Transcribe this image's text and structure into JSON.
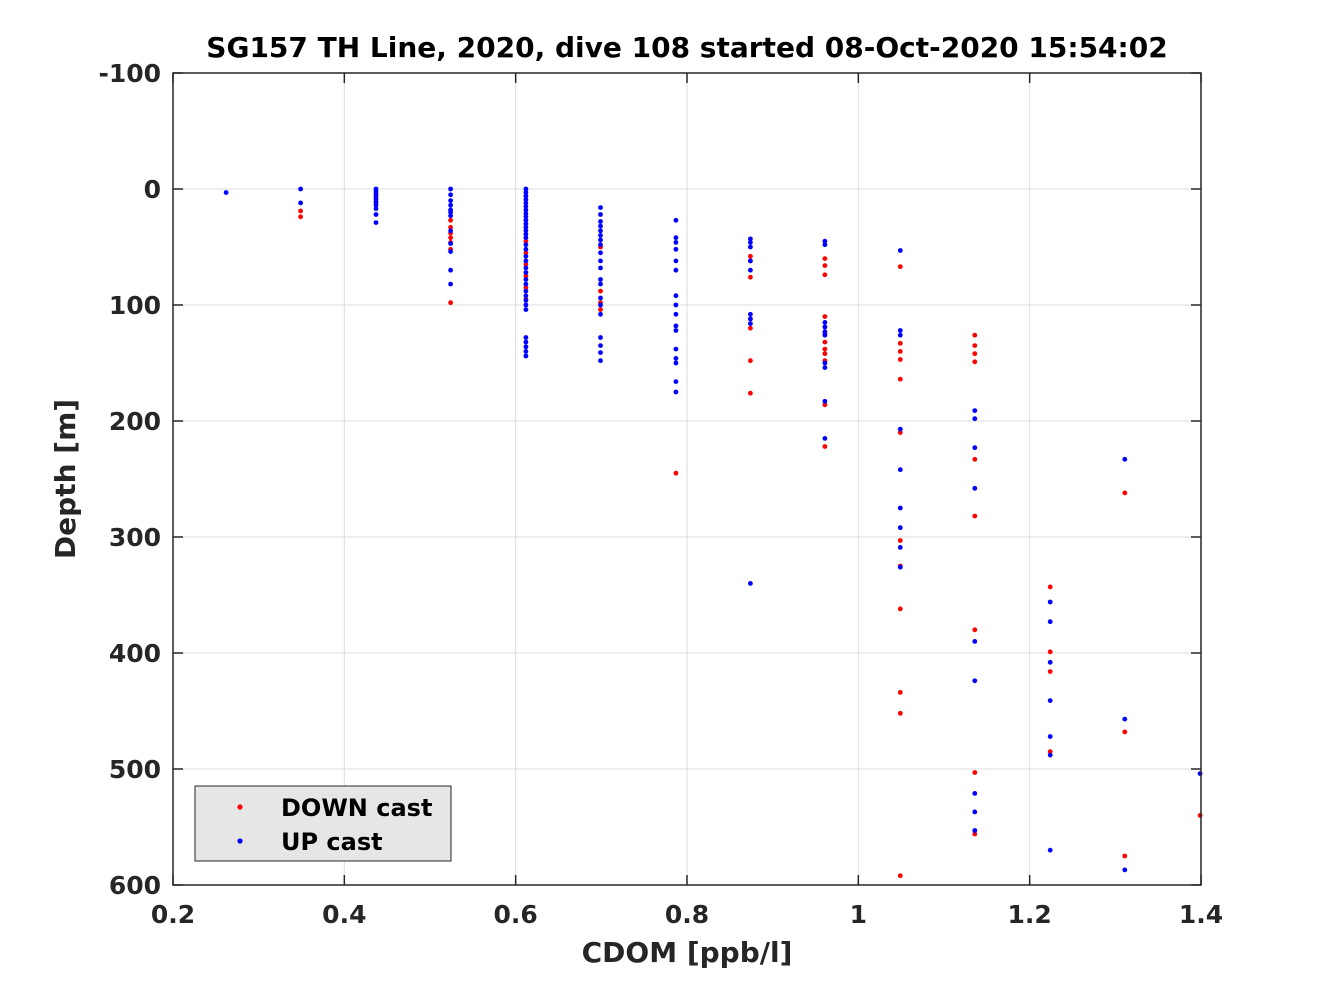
{
  "chart_data": {
    "type": "scatter",
    "title": "SG157 TH Line, 2020, dive 108 started 08-Oct-2020 15:54:02",
    "xlabel": "CDOM [ppb/l]",
    "ylabel": "Depth [m]",
    "xlim": [
      0.2,
      1.4
    ],
    "ylim": [
      -100,
      600
    ],
    "y_reversed": true,
    "grid": true,
    "xticks": [
      "0.2",
      "0.4",
      "0.6",
      "0.8",
      "1",
      "1.2",
      "1.4"
    ],
    "yticks": [
      "-100",
      "0",
      "100",
      "200",
      "300",
      "400",
      "500",
      "600"
    ],
    "legend_position": "bottom-left",
    "series": [
      {
        "name": "DOWN cast",
        "color": "#ff0000",
        "points": [
          [
            0.349,
            19
          ],
          [
            0.349,
            24
          ],
          [
            0.437,
            8
          ],
          [
            0.437,
            12
          ],
          [
            0.524,
            27
          ],
          [
            0.524,
            33
          ],
          [
            0.524,
            38
          ],
          [
            0.524,
            42
          ],
          [
            0.524,
            46
          ],
          [
            0.524,
            52
          ],
          [
            0.524,
            98
          ],
          [
            0.612,
            45
          ],
          [
            0.612,
            55
          ],
          [
            0.612,
            65
          ],
          [
            0.612,
            75
          ],
          [
            0.612,
            85
          ],
          [
            0.612,
            95
          ],
          [
            0.699,
            50
          ],
          [
            0.699,
            88
          ],
          [
            0.699,
            98
          ],
          [
            0.699,
            104
          ],
          [
            0.787,
            245
          ],
          [
            0.874,
            58
          ],
          [
            0.874,
            62
          ],
          [
            0.874,
            76
          ],
          [
            0.874,
            112
          ],
          [
            0.874,
            120
          ],
          [
            0.874,
            148
          ],
          [
            0.874,
            176
          ],
          [
            0.961,
            60
          ],
          [
            0.961,
            66
          ],
          [
            0.961,
            74
          ],
          [
            0.961,
            110
          ],
          [
            0.961,
            125
          ],
          [
            0.961,
            132
          ],
          [
            0.961,
            138
          ],
          [
            0.961,
            142
          ],
          [
            0.961,
            148
          ],
          [
            0.961,
            186
          ],
          [
            0.961,
            222
          ],
          [
            1.049,
            67
          ],
          [
            1.049,
            133
          ],
          [
            1.049,
            140
          ],
          [
            1.049,
            147
          ],
          [
            1.049,
            164
          ],
          [
            1.049,
            210
          ],
          [
            1.049,
            303
          ],
          [
            1.049,
            325
          ],
          [
            1.049,
            362
          ],
          [
            1.049,
            434
          ],
          [
            1.049,
            452
          ],
          [
            1.049,
            592
          ],
          [
            1.136,
            126
          ],
          [
            1.136,
            135
          ],
          [
            1.136,
            142
          ],
          [
            1.136,
            149
          ],
          [
            1.136,
            233
          ],
          [
            1.136,
            282
          ],
          [
            1.136,
            380
          ],
          [
            1.136,
            503
          ],
          [
            1.136,
            556
          ],
          [
            1.224,
            343
          ],
          [
            1.224,
            399
          ],
          [
            1.224,
            416
          ],
          [
            1.224,
            485
          ],
          [
            1.311,
            262
          ],
          [
            1.311,
            468
          ],
          [
            1.311,
            575
          ],
          [
            1.399,
            540
          ]
        ]
      },
      {
        "name": "UP cast",
        "color": "#0000ff",
        "points": [
          [
            0.262,
            3
          ],
          [
            0.349,
            0
          ],
          [
            0.349,
            12
          ],
          [
            0.437,
            0
          ],
          [
            0.437,
            2
          ],
          [
            0.437,
            4
          ],
          [
            0.437,
            6
          ],
          [
            0.437,
            9
          ],
          [
            0.437,
            11
          ],
          [
            0.437,
            14
          ],
          [
            0.437,
            17
          ],
          [
            0.437,
            22
          ],
          [
            0.437,
            29
          ],
          [
            0.524,
            0
          ],
          [
            0.524,
            5
          ],
          [
            0.524,
            10
          ],
          [
            0.524,
            14
          ],
          [
            0.524,
            18
          ],
          [
            0.524,
            20
          ],
          [
            0.524,
            23
          ],
          [
            0.524,
            36
          ],
          [
            0.524,
            47
          ],
          [
            0.524,
            54
          ],
          [
            0.524,
            70
          ],
          [
            0.524,
            82
          ],
          [
            0.612,
            0
          ],
          [
            0.612,
            3
          ],
          [
            0.612,
            6
          ],
          [
            0.612,
            9
          ],
          [
            0.612,
            12
          ],
          [
            0.612,
            15
          ],
          [
            0.612,
            18
          ],
          [
            0.612,
            21
          ],
          [
            0.612,
            24
          ],
          [
            0.612,
            27
          ],
          [
            0.612,
            30
          ],
          [
            0.612,
            33
          ],
          [
            0.612,
            36
          ],
          [
            0.612,
            39
          ],
          [
            0.612,
            42
          ],
          [
            0.612,
            48
          ],
          [
            0.612,
            52
          ],
          [
            0.612,
            58
          ],
          [
            0.612,
            62
          ],
          [
            0.612,
            68
          ],
          [
            0.612,
            72
          ],
          [
            0.612,
            78
          ],
          [
            0.612,
            82
          ],
          [
            0.612,
            88
          ],
          [
            0.612,
            92
          ],
          [
            0.612,
            96
          ],
          [
            0.612,
            100
          ],
          [
            0.612,
            104
          ],
          [
            0.612,
            128
          ],
          [
            0.612,
            132
          ],
          [
            0.612,
            136
          ],
          [
            0.612,
            140
          ],
          [
            0.612,
            144
          ],
          [
            0.699,
            16
          ],
          [
            0.699,
            22
          ],
          [
            0.699,
            28
          ],
          [
            0.699,
            32
          ],
          [
            0.699,
            36
          ],
          [
            0.699,
            40
          ],
          [
            0.699,
            44
          ],
          [
            0.699,
            48
          ],
          [
            0.699,
            55
          ],
          [
            0.699,
            62
          ],
          [
            0.699,
            68
          ],
          [
            0.699,
            78
          ],
          [
            0.699,
            82
          ],
          [
            0.699,
            94
          ],
          [
            0.699,
            100
          ],
          [
            0.699,
            108
          ],
          [
            0.699,
            128
          ],
          [
            0.699,
            135
          ],
          [
            0.699,
            141
          ],
          [
            0.699,
            148
          ],
          [
            0.787,
            27
          ],
          [
            0.787,
            42
          ],
          [
            0.787,
            46
          ],
          [
            0.787,
            52
          ],
          [
            0.787,
            62
          ],
          [
            0.787,
            70
          ],
          [
            0.787,
            92
          ],
          [
            0.787,
            100
          ],
          [
            0.787,
            108
          ],
          [
            0.787,
            118
          ],
          [
            0.787,
            122
          ],
          [
            0.787,
            138
          ],
          [
            0.787,
            146
          ],
          [
            0.787,
            150
          ],
          [
            0.787,
            166
          ],
          [
            0.787,
            175
          ],
          [
            0.874,
            43
          ],
          [
            0.874,
            46
          ],
          [
            0.874,
            50
          ],
          [
            0.874,
            62
          ],
          [
            0.874,
            70
          ],
          [
            0.874,
            108
          ],
          [
            0.874,
            112
          ],
          [
            0.874,
            116
          ],
          [
            0.874,
            340
          ],
          [
            0.961,
            45
          ],
          [
            0.961,
            48
          ],
          [
            0.961,
            115
          ],
          [
            0.961,
            119
          ],
          [
            0.961,
            123
          ],
          [
            0.961,
            126
          ],
          [
            0.961,
            150
          ],
          [
            0.961,
            154
          ],
          [
            0.961,
            183
          ],
          [
            0.961,
            215
          ],
          [
            1.049,
            53
          ],
          [
            1.049,
            122
          ],
          [
            1.049,
            126
          ],
          [
            1.049,
            207
          ],
          [
            1.049,
            242
          ],
          [
            1.049,
            275
          ],
          [
            1.049,
            292
          ],
          [
            1.049,
            309
          ],
          [
            1.049,
            326
          ],
          [
            1.136,
            191
          ],
          [
            1.136,
            198
          ],
          [
            1.136,
            223
          ],
          [
            1.136,
            258
          ],
          [
            1.136,
            390
          ],
          [
            1.136,
            424
          ],
          [
            1.136,
            521
          ],
          [
            1.136,
            537
          ],
          [
            1.136,
            553
          ],
          [
            1.224,
            356
          ],
          [
            1.224,
            373
          ],
          [
            1.224,
            408
          ],
          [
            1.224,
            441
          ],
          [
            1.224,
            472
          ],
          [
            1.224,
            488
          ],
          [
            1.224,
            570
          ],
          [
            1.311,
            233
          ],
          [
            1.311,
            457
          ],
          [
            1.311,
            587
          ],
          [
            1.399,
            504
          ]
        ]
      }
    ]
  }
}
